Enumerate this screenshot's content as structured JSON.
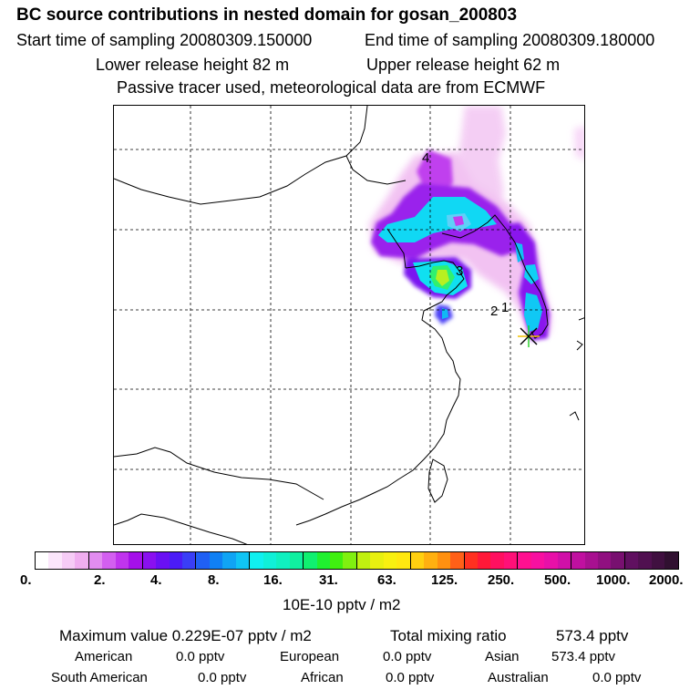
{
  "header": {
    "title": "BC  source contributions in nested domain for gosan_200803",
    "start_label": "Start time of sampling 20080309.150000",
    "end_label": "End time of sampling 20080309.180000",
    "lower_label": "Lower release height   82 m",
    "upper_label": "Upper release height   62 m",
    "tracer_label": "Passive tracer used, meteorological data are from ECMWF"
  },
  "map": {
    "receptor_symbol": "*",
    "trajectory_markers": [
      "1",
      "2",
      "3",
      "4"
    ]
  },
  "colorbar": {
    "unit_label": "10E-10 pptv / m2",
    "tick_labels": [
      "0.",
      "2.",
      "4.",
      "8.",
      "16.",
      "31.",
      "63.",
      "125.",
      "250.",
      "500.",
      "1000.",
      "2000."
    ],
    "colors": [
      "#ffffff",
      "#fbe6fb",
      "#f6ccf6",
      "#f0aef0",
      "#e28cf0",
      "#d35ff0",
      "#c034ee",
      "#a510ea",
      "#8a10f0",
      "#6a10f4",
      "#4b1cf6",
      "#3a3ef6",
      "#2060f4",
      "#1080f4",
      "#10a4f4",
      "#10c4f4",
      "#10f0f0",
      "#10f0d8",
      "#10f0c0",
      "#10f0a0",
      "#10f070",
      "#20f030",
      "#40f010",
      "#80f010",
      "#c0f010",
      "#e8f010",
      "#f8f010",
      "#ffe810",
      "#ffd010",
      "#ffb010",
      "#ff9010",
      "#ff6018",
      "#ff3020",
      "#ff1838",
      "#ff1060",
      "#ff1078",
      "#ff1090",
      "#f810a0",
      "#e810a8",
      "#d010a8",
      "#c010a0",
      "#a81090",
      "#901080",
      "#781070",
      "#601060",
      "#501050",
      "#401040",
      "#301030"
    ]
  },
  "summary": {
    "max_label": "Maximum value  0.229E-07 pptv / m2",
    "total_label": "Total mixing ratio",
    "total_value": "573.4 pptv",
    "american_label": "American",
    "american_value": "0.0 pptv",
    "european_label": "European",
    "european_value": "0.0 pptv",
    "asian_label": "Asian",
    "asian_value": "573.4 pptv",
    "south_american_label": "South American",
    "south_american_value": "0.0 pptv",
    "african_label": "African",
    "african_value": "0.0 pptv",
    "australian_label": "Australian",
    "australian_value": "0.0 pptv"
  }
}
